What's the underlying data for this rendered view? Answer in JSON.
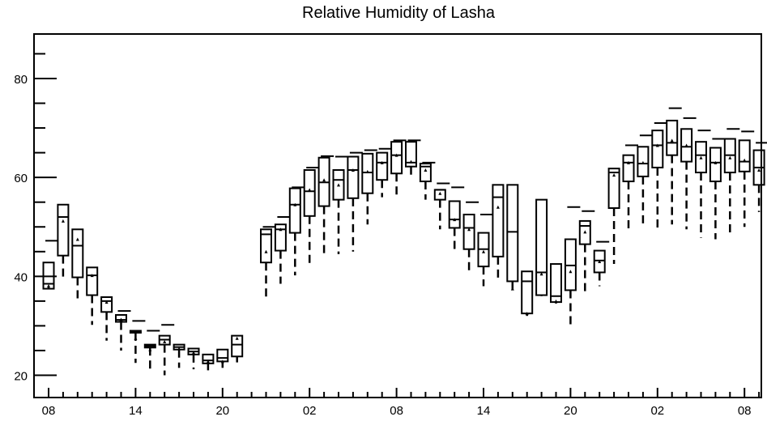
{
  "chart_data": {
    "type": "box",
    "title": "Relative Humidity of Lasha",
    "xlabel": "",
    "ylabel": "",
    "ylim": [
      15.5,
      89
    ],
    "y_ticks": [
      20,
      40,
      60,
      80
    ],
    "x_tick_labels": [
      "08",
      "14",
      "20",
      "02",
      "08",
      "14",
      "20",
      "02",
      "08"
    ],
    "x_tick_slots": [
      0,
      6,
      12,
      18,
      24,
      30,
      36,
      42,
      48
    ],
    "grid": false,
    "boxes": [
      {
        "slot": 0,
        "q1": 37.5,
        "median": 38.5,
        "q3": 42.8,
        "mean": 38.1,
        "wlo": 37.8,
        "whi": 47.2
      },
      {
        "slot": 1,
        "q1": 44.2,
        "median": 52.0,
        "q3": 54.5,
        "mean": 51.2,
        "wlo": 39.5,
        "whi": null
      },
      {
        "slot": 2,
        "q1": 39.8,
        "median": 46.2,
        "q3": 49.5,
        "mean": 47.5,
        "wlo": 35.0,
        "whi": null
      },
      {
        "slot": 3,
        "q1": 36.2,
        "median": 40.2,
        "q3": 41.8,
        "mean": 40.2,
        "wlo": 30.2,
        "whi": null
      },
      {
        "slot": 4,
        "q1": 32.8,
        "median": 35.0,
        "q3": 35.8,
        "mean": 34.8,
        "wlo": 27.0,
        "whi": null
      },
      {
        "slot": 5,
        "q1": 30.8,
        "median": 31.2,
        "q3": 32.2,
        "mean": 31.3,
        "wlo": 25.0,
        "whi": 33.0
      },
      {
        "slot": 6,
        "q1": 28.6,
        "median": 28.8,
        "q3": 29.0,
        "mean": 27.5,
        "wlo": 22.5,
        "whi": 31.0
      },
      {
        "slot": 7,
        "q1": 25.6,
        "median": 25.9,
        "q3": 26.2,
        "mean": 25.2,
        "wlo": 20.5,
        "whi": 29.0
      },
      {
        "slot": 8,
        "q1": 26.2,
        "median": 27.2,
        "q3": 28.0,
        "mean": 26.8,
        "wlo": 20.0,
        "whi": 30.2
      },
      {
        "slot": 9,
        "q1": 25.2,
        "median": 25.7,
        "q3": 26.2,
        "mean": 25.4,
        "wlo": 21.5,
        "whi": null
      },
      {
        "slot": 10,
        "q1": 24.2,
        "median": 24.8,
        "q3": 25.4,
        "mean": 24.6,
        "wlo": 21.2,
        "whi": null
      },
      {
        "slot": 11,
        "q1": 22.4,
        "median": 23.0,
        "q3": 24.2,
        "mean": 22.8,
        "wlo": 21.0,
        "whi": null
      },
      {
        "slot": 12,
        "q1": 22.8,
        "median": 23.5,
        "q3": 25.2,
        "mean": 22.8,
        "wlo": 21.5,
        "whi": null
      },
      {
        "slot": 13,
        "q1": 23.8,
        "median": 26.2,
        "q3": 28.0,
        "mean": 27.5,
        "wlo": 22.6,
        "whi": null
      },
      {
        "slot": 15,
        "q1": 42.8,
        "median": 48.5,
        "q3": 49.5,
        "mean": 45.0,
        "wlo": 35.0,
        "whi": 50.0
      },
      {
        "slot": 16,
        "q1": 45.2,
        "median": 49.5,
        "q3": 50.5,
        "mean": 49.5,
        "wlo": 38.5,
        "whi": 52.0
      },
      {
        "slot": 17,
        "q1": 48.8,
        "median": 54.5,
        "q3": 57.8,
        "mean": 54.5,
        "wlo": 40.2,
        "whi": 58.0
      },
      {
        "slot": 18,
        "q1": 52.2,
        "median": 57.2,
        "q3": 61.5,
        "mean": 57.5,
        "wlo": 42.0,
        "whi": 62.0
      },
      {
        "slot": 19,
        "q1": 54.2,
        "median": 59.0,
        "q3": 64.0,
        "mean": 59.5,
        "wlo": 44.0,
        "whi": 64.3
      },
      {
        "slot": 20,
        "q1": 55.5,
        "median": 59.5,
        "q3": 61.5,
        "mean": 58.5,
        "wlo": 44.5,
        "whi": 64.2
      },
      {
        "slot": 21,
        "q1": 55.8,
        "median": 61.5,
        "q3": 64.2,
        "mean": 61.5,
        "wlo": 45.0,
        "whi": 65.0
      },
      {
        "slot": 22,
        "q1": 56.8,
        "median": 61.0,
        "q3": 64.8,
        "mean": 61.2,
        "wlo": 50.5,
        "whi": 65.5
      },
      {
        "slot": 23,
        "q1": 59.5,
        "median": 63.0,
        "q3": 65.0,
        "mean": 63.0,
        "wlo": 56.0,
        "whi": 65.8
      },
      {
        "slot": 24,
        "q1": 60.8,
        "median": 64.5,
        "q3": 67.2,
        "mean": 64.5,
        "wlo": 56.2,
        "whi": 67.5
      },
      {
        "slot": 25,
        "q1": 62.2,
        "median": 63.0,
        "q3": 67.2,
        "mean": 63.2,
        "wlo": 60.0,
        "whi": 67.5
      },
      {
        "slot": 26,
        "q1": 59.2,
        "median": 62.2,
        "q3": 62.8,
        "mean": 61.5,
        "wlo": 55.5,
        "whi": 63.0
      },
      {
        "slot": 27,
        "q1": 55.5,
        "median": 57.5,
        "q3": 57.5,
        "mean": 56.8,
        "wlo": 49.5,
        "whi": 58.8
      },
      {
        "slot": 28,
        "q1": 49.8,
        "median": 51.5,
        "q3": 55.2,
        "mean": 51.5,
        "wlo": 45.0,
        "whi": 58.0
      },
      {
        "slot": 29,
        "q1": 45.5,
        "median": 49.8,
        "q3": 52.5,
        "mean": 49.5,
        "wlo": 40.5,
        "whi": 55.0
      },
      {
        "slot": 30,
        "q1": 42.0,
        "median": 45.5,
        "q3": 48.8,
        "mean": 45.0,
        "wlo": 38.0,
        "whi": 52.5
      },
      {
        "slot": 31,
        "q1": 44.0,
        "median": 56.0,
        "q3": 58.5,
        "mean": 54.0,
        "wlo": 39.0,
        "whi": null
      },
      {
        "slot": 32,
        "q1": 39.0,
        "median": 49.0,
        "q3": 58.5,
        "mean": 37.5,
        "wlo": 36.5,
        "whi": null
      },
      {
        "slot": 33,
        "q1": 32.5,
        "median": 39.0,
        "q3": 41.0,
        "mean": 32.5,
        "wlo": 32.0,
        "whi": null
      },
      {
        "slot": 34,
        "q1": 36.2,
        "median": 40.8,
        "q3": 55.5,
        "mean": 40.5,
        "wlo": 36.0,
        "whi": null
      },
      {
        "slot": 35,
        "q1": 34.8,
        "median": 36.0,
        "q3": 42.5,
        "mean": 35.0,
        "wlo": 34.5,
        "whi": null
      },
      {
        "slot": 36,
        "q1": 37.2,
        "median": 42.2,
        "q3": 47.5,
        "mean": 41.0,
        "wlo": 29.5,
        "whi": 54.0
      },
      {
        "slot": 37,
        "q1": 46.5,
        "median": 50.2,
        "q3": 51.2,
        "mean": 49.0,
        "wlo": 36.5,
        "whi": 53.2
      },
      {
        "slot": 38,
        "q1": 40.8,
        "median": 43.2,
        "q3": 45.2,
        "mean": 43.0,
        "wlo": 38.0,
        "whi": 47.0
      },
      {
        "slot": 39,
        "q1": 53.8,
        "median": 61.0,
        "q3": 61.8,
        "mean": 60.5,
        "wlo": 42.5,
        "whi": null
      },
      {
        "slot": 40,
        "q1": 59.2,
        "median": 63.0,
        "q3": 64.5,
        "mean": 63.0,
        "wlo": 49.5,
        "whi": 66.5
      },
      {
        "slot": 41,
        "q1": 60.2,
        "median": 62.8,
        "q3": 66.2,
        "mean": 63.0,
        "wlo": 50.0,
        "whi": 68.5
      },
      {
        "slot": 42,
        "q1": 62.0,
        "median": 66.5,
        "q3": 69.5,
        "mean": 66.5,
        "wlo": 49.5,
        "whi": 71.0
      },
      {
        "slot": 43,
        "q1": 64.5,
        "median": 67.0,
        "q3": 71.5,
        "mean": 67.5,
        "wlo": 50.5,
        "whi": 74.0
      },
      {
        "slot": 44,
        "q1": 63.2,
        "median": 66.2,
        "q3": 69.8,
        "mean": 66.5,
        "wlo": 49.5,
        "whi": 72.0
      },
      {
        "slot": 45,
        "q1": 61.0,
        "median": 64.5,
        "q3": 67.2,
        "mean": 64.0,
        "wlo": 47.8,
        "whi": 69.5
      },
      {
        "slot": 46,
        "q1": 59.2,
        "median": 63.0,
        "q3": 66.0,
        "mean": 63.0,
        "wlo": 47.5,
        "whi": 67.8
      },
      {
        "slot": 47,
        "q1": 61.0,
        "median": 64.5,
        "q3": 67.8,
        "mean": 64.0,
        "wlo": 48.5,
        "whi": 69.8
      },
      {
        "slot": 48,
        "q1": 61.2,
        "median": 63.2,
        "q3": 67.5,
        "mean": 63.5,
        "wlo": 50.0,
        "whi": 69.3
      },
      {
        "slot": 49,
        "q1": 58.5,
        "median": 62.0,
        "q3": 65.5,
        "mean": 61.5,
        "wlo": 53.0,
        "whi": 67.0
      }
    ]
  }
}
